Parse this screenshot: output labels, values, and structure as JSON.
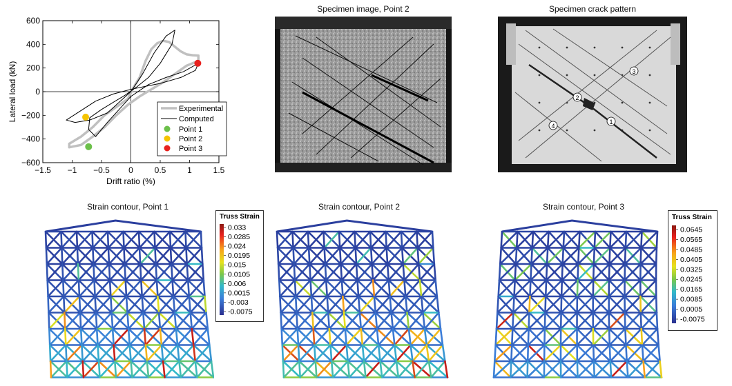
{
  "titles": {
    "specimen_image": "Specimen image, Point 2",
    "crack_pattern": "Specimen crack pattern",
    "contour1": "Strain contour, Point 1",
    "contour2": "Strain contour, Point 2",
    "contour3": "Strain contour, Point 3"
  },
  "crack_labels": [
    "1",
    "2",
    "3",
    "4"
  ],
  "colorbar1": {
    "title": "Truss Strain",
    "ticks": [
      "0.033",
      "0.0285",
      "0.024",
      "0.0195",
      "0.015",
      "0.0105",
      "0.006",
      "0.0015",
      "-0.003",
      "-0.0075"
    ]
  },
  "colorbar2": {
    "title": "Truss Strain",
    "ticks": [
      "0.0645",
      "0.0565",
      "0.0485",
      "0.0405",
      "0.0325",
      "0.0245",
      "0.0165",
      "0.0085",
      "0.0005",
      "-0.0075"
    ]
  },
  "colors": {
    "experimental": "#c0c0c0",
    "computed": "#000000",
    "point1": "#6cc04a",
    "point2": "#f5c400",
    "point3": "#e8211e",
    "mesh_base": "#2b3f9e"
  },
  "chart_data": {
    "type": "line",
    "title": "",
    "xlabel": "Drift ratio (%)",
    "ylabel": "Lateral load (kN)",
    "xlim": [
      -1.5,
      1.5
    ],
    "ylim": [
      -600,
      600
    ],
    "xticks": [
      -1.5,
      -1,
      -0.5,
      0,
      0.5,
      1,
      1.5
    ],
    "xtick_labels": [
      "−1.5",
      "−1",
      "−0.5",
      "0",
      "0.5",
      "1",
      "1.5"
    ],
    "yticks": [
      600,
      400,
      200,
      0,
      -200,
      -400,
      -600
    ],
    "ytick_labels": [
      "600",
      "400",
      "200",
      "0",
      "−200",
      "−400",
      "−600"
    ],
    "grid": false,
    "legend_position": "lower-right",
    "series": [
      {
        "name": "Experimental",
        "x": [
          -0.05,
          0.05,
          0.15,
          0.25,
          0.35,
          0.45,
          0.55,
          0.65,
          0.75,
          0.85,
          0.95,
          1.05,
          1.15,
          1.15,
          0.95,
          0.75,
          0.55,
          0.35,
          0.15,
          -0.05,
          -0.25,
          -0.45,
          -0.65,
          -0.85,
          -1.05,
          -1.05,
          -0.85,
          -0.65,
          -0.45,
          -0.25,
          -0.05
        ],
        "y": [
          -60,
          40,
          120,
          260,
          360,
          410,
          430,
          420,
          380,
          340,
          315,
          308,
          305,
          260,
          220,
          150,
          80,
          20,
          -40,
          -110,
          -200,
          -300,
          -380,
          -450,
          -470,
          -440,
          -380,
          -300,
          -200,
          -130,
          -60
        ]
      },
      {
        "name": "Computed",
        "x": [
          0,
          0.2,
          0.4,
          0.6,
          0.75,
          0.7,
          0.5,
          0.3,
          0.1,
          -0.1,
          -0.3,
          -0.5,
          -0.7,
          -0.72,
          -0.6,
          -0.4,
          -0.2,
          0,
          0.3,
          0.6,
          0.9,
          1.15,
          1.1,
          0.85,
          0.5,
          0.2,
          0,
          -0.3,
          -0.6,
          -1.1,
          -0.95,
          -0.7,
          -0.4,
          -0.2,
          0
        ],
        "y": [
          0,
          150,
          330,
          470,
          520,
          400,
          240,
          120,
          40,
          -30,
          -90,
          -150,
          -220,
          -320,
          -380,
          -260,
          -150,
          -40,
          60,
          120,
          170,
          240,
          180,
          120,
          70,
          40,
          20,
          -20,
          -80,
          -240,
          -260,
          -240,
          -180,
          -90,
          0
        ]
      },
      {
        "name": "Point 1",
        "x": [
          -0.72
        ],
        "y": [
          -465
        ]
      },
      {
        "name": "Point 2",
        "x": [
          -0.77
        ],
        "y": [
          -215
        ]
      },
      {
        "name": "Point 3",
        "x": [
          1.14
        ],
        "y": [
          240
        ]
      }
    ]
  }
}
